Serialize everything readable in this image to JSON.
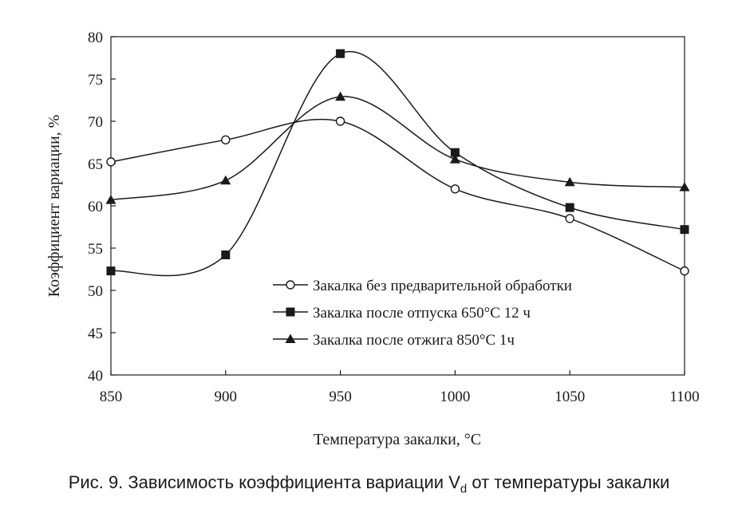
{
  "chart_data": {
    "type": "line",
    "smooth": true,
    "x": [
      850,
      900,
      950,
      1000,
      1050,
      1100
    ],
    "xlim": [
      850,
      1100
    ],
    "xticks": [
      "850",
      "900",
      "950",
      "1000",
      "1050",
      "1100"
    ],
    "ylim": [
      40,
      80
    ],
    "yticks": [
      "40",
      "45",
      "50",
      "55",
      "60",
      "65",
      "70",
      "75",
      "80"
    ],
    "xlabel": "Температура закалки, °С",
    "ylabel": "Коэффициент вариации, %",
    "grid": false,
    "legend_position": "inside, lower-right",
    "series": [
      {
        "name": "Закалка без предварительной обработки",
        "marker": "circle-open",
        "values": [
          65.2,
          67.8,
          70.0,
          62.0,
          58.5,
          52.3
        ]
      },
      {
        "name": "Закалка после отпуска 650°С 12 ч",
        "marker": "square-filled",
        "values": [
          52.3,
          54.2,
          78.0,
          66.3,
          59.8,
          57.2
        ]
      },
      {
        "name": "Закалка после отжига 850°С 1ч",
        "marker": "triangle-filled",
        "values": [
          60.7,
          63.0,
          72.9,
          65.5,
          62.8,
          62.2
        ]
      }
    ]
  },
  "caption": {
    "prefix": "Рис. 9. Зависимость коэффициента вариации V",
    "subscript": "d",
    "suffix": " от температуры закалки"
  }
}
